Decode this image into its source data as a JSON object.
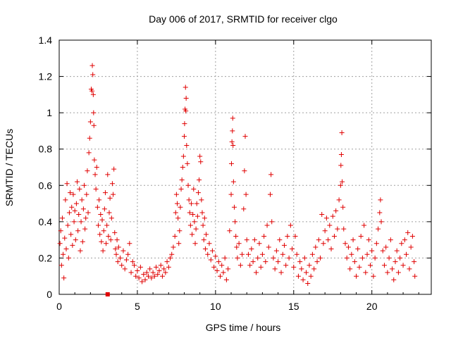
{
  "chart_data": {
    "type": "scatter",
    "title": "Day 006 of 2017, SRMTID for receiver clgo",
    "xlabel": "GPS time / hours",
    "ylabel": "SRMTID / TECUs",
    "xlim": [
      0,
      23.8
    ],
    "ylim": [
      0,
      1.4
    ],
    "x_ticks": [
      0,
      5,
      10,
      15,
      20
    ],
    "x_tick_labels": [
      "0",
      "5",
      "10",
      "15",
      "20"
    ],
    "y_ticks": [
      0,
      0.2,
      0.4,
      0.6,
      0.8,
      1.0,
      1.2,
      1.4
    ],
    "y_tick_labels": [
      "0",
      "0.2",
      "0.4",
      "0.6",
      "0.8",
      "1",
      "1.2",
      "1.4"
    ],
    "grid": true,
    "marker": "+",
    "color": "#e00000",
    "series": [
      {
        "name": "SRMTID",
        "points": [
          [
            0.05,
            0.28
          ],
          [
            0.1,
            0.35
          ],
          [
            0.15,
            0.16
          ],
          [
            0.2,
            0.42
          ],
          [
            0.25,
            0.22
          ],
          [
            0.3,
            0.09
          ],
          [
            0.35,
            0.31
          ],
          [
            0.4,
            0.52
          ],
          [
            0.45,
            0.25
          ],
          [
            0.5,
            0.61
          ],
          [
            0.55,
            0.38
          ],
          [
            0.6,
            0.2
          ],
          [
            0.65,
            0.45
          ],
          [
            0.7,
            0.56
          ],
          [
            0.75,
            0.33
          ],
          [
            0.8,
            0.48
          ],
          [
            0.85,
            0.27
          ],
          [
            0.9,
            0.55
          ],
          [
            0.95,
            0.4
          ],
          [
            1.0,
            0.46
          ],
          [
            1.05,
            0.3
          ],
          [
            1.1,
            0.5
          ],
          [
            1.15,
            0.62
          ],
          [
            1.2,
            0.35
          ],
          [
            1.25,
            0.44
          ],
          [
            1.3,
            0.58
          ],
          [
            1.35,
            0.24
          ],
          [
            1.4,
            0.4
          ],
          [
            1.45,
            0.52
          ],
          [
            1.5,
            0.29
          ],
          [
            1.55,
            0.47
          ],
          [
            1.6,
            0.6
          ],
          [
            1.65,
            0.36
          ],
          [
            1.7,
            0.42
          ],
          [
            1.75,
            0.55
          ],
          [
            1.8,
            0.68
          ],
          [
            1.85,
            0.45
          ],
          [
            1.9,
            0.78
          ],
          [
            1.95,
            0.86
          ],
          [
            2.0,
            0.95
          ],
          [
            2.05,
            1.13
          ],
          [
            2.1,
            1.12
          ],
          [
            2.12,
            1.26
          ],
          [
            2.15,
            1.21
          ],
          [
            2.18,
            1.1
          ],
          [
            2.2,
            1.0
          ],
          [
            2.22,
            0.93
          ],
          [
            2.25,
            0.74
          ],
          [
            2.3,
            0.66
          ],
          [
            2.35,
            0.58
          ],
          [
            2.4,
            0.7
          ],
          [
            2.45,
            0.48
          ],
          [
            2.5,
            0.38
          ],
          [
            2.55,
            0.52
          ],
          [
            2.6,
            0.33
          ],
          [
            2.65,
            0.44
          ],
          [
            2.7,
            0.29
          ],
          [
            2.75,
            0.41
          ],
          [
            2.8,
            0.24
          ],
          [
            2.85,
            0.35
          ],
          [
            2.9,
            0.47
          ],
          [
            2.95,
            0.56
          ],
          [
            3.0,
            0.28
          ],
          [
            3.05,
            0.38
          ],
          [
            3.1,
            0.66
          ],
          [
            3.15,
            0.32
          ],
          [
            3.2,
            0.45
          ],
          [
            3.25,
            0.53
          ],
          [
            3.3,
            0.3
          ],
          [
            3.35,
            0.42
          ],
          [
            3.4,
            0.61
          ],
          [
            3.45,
            0.55
          ],
          [
            3.5,
            0.69
          ],
          [
            3.55,
            0.34
          ],
          [
            3.6,
            0.25
          ],
          [
            3.65,
            0.22
          ],
          [
            3.7,
            0.3
          ],
          [
            3.75,
            0.18
          ],
          [
            3.8,
            0.26
          ],
          [
            3.9,
            0.2
          ],
          [
            4.0,
            0.16
          ],
          [
            4.1,
            0.24
          ],
          [
            4.2,
            0.14
          ],
          [
            4.3,
            0.19
          ],
          [
            4.4,
            0.22
          ],
          [
            4.5,
            0.28
          ],
          [
            4.6,
            0.12
          ],
          [
            4.7,
            0.18
          ],
          [
            4.8,
            0.16
          ],
          [
            4.9,
            0.1
          ],
          [
            5.0,
            0.13
          ],
          [
            5.1,
            0.09
          ],
          [
            5.2,
            0.15
          ],
          [
            5.3,
            0.07
          ],
          [
            5.4,
            0.11
          ],
          [
            5.5,
            0.08
          ],
          [
            5.6,
            0.12
          ],
          [
            5.7,
            0.1
          ],
          [
            5.8,
            0.14
          ],
          [
            5.9,
            0.09
          ],
          [
            6.0,
            0.12
          ],
          [
            6.1,
            0.1
          ],
          [
            6.2,
            0.15
          ],
          [
            6.3,
            0.11
          ],
          [
            6.4,
            0.13
          ],
          [
            6.5,
            0.16
          ],
          [
            6.6,
            0.1
          ],
          [
            6.7,
            0.14
          ],
          [
            6.8,
            0.12
          ],
          [
            6.9,
            0.18
          ],
          [
            7.0,
            0.15
          ],
          [
            7.1,
            0.2
          ],
          [
            7.2,
            0.22
          ],
          [
            7.3,
            0.26
          ],
          [
            7.4,
            0.32
          ],
          [
            7.45,
            0.45
          ],
          [
            7.5,
            0.55
          ],
          [
            7.55,
            0.5
          ],
          [
            7.6,
            0.42
          ],
          [
            7.65,
            0.28
          ],
          [
            7.7,
            0.35
          ],
          [
            7.75,
            0.48
          ],
          [
            7.8,
            0.58
          ],
          [
            7.85,
            0.63
          ],
          [
            7.9,
            0.7
          ],
          [
            7.95,
            0.76
          ],
          [
            8.0,
            0.87
          ],
          [
            8.02,
            0.94
          ],
          [
            8.05,
            1.02
          ],
          [
            8.08,
            1.14
          ],
          [
            8.1,
            1.01
          ],
          [
            8.12,
            1.08
          ],
          [
            8.15,
            0.82
          ],
          [
            8.2,
            0.72
          ],
          [
            8.25,
            0.6
          ],
          [
            8.3,
            0.52
          ],
          [
            8.35,
            0.45
          ],
          [
            8.4,
            0.38
          ],
          [
            8.45,
            0.5
          ],
          [
            8.5,
            0.33
          ],
          [
            8.55,
            0.44
          ],
          [
            8.6,
            0.58
          ],
          [
            8.65,
            0.4
          ],
          [
            8.7,
            0.28
          ],
          [
            8.75,
            0.36
          ],
          [
            8.8,
            0.5
          ],
          [
            8.85,
            0.43
          ],
          [
            8.9,
            0.56
          ],
          [
            8.95,
            0.63
          ],
          [
            9.0,
            0.76
          ],
          [
            9.05,
            0.73
          ],
          [
            9.1,
            0.52
          ],
          [
            9.15,
            0.45
          ],
          [
            9.2,
            0.38
          ],
          [
            9.25,
            0.3
          ],
          [
            9.3,
            0.42
          ],
          [
            9.35,
            0.25
          ],
          [
            9.4,
            0.33
          ],
          [
            9.5,
            0.22
          ],
          [
            9.6,
            0.28
          ],
          [
            9.7,
            0.19
          ],
          [
            9.8,
            0.24
          ],
          [
            9.9,
            0.15
          ],
          [
            10.0,
            0.21
          ],
          [
            10.1,
            0.13
          ],
          [
            10.2,
            0.18
          ],
          [
            10.3,
            0.1
          ],
          [
            10.4,
            0.16
          ],
          [
            10.5,
            0.12
          ],
          [
            10.6,
            0.2
          ],
          [
            10.7,
            0.08
          ],
          [
            10.8,
            0.14
          ],
          [
            10.9,
            0.35
          ],
          [
            11.0,
            0.55
          ],
          [
            11.02,
            0.72
          ],
          [
            11.05,
            0.84
          ],
          [
            11.08,
            0.9
          ],
          [
            11.1,
            0.97
          ],
          [
            11.12,
            0.82
          ],
          [
            11.15,
            0.62
          ],
          [
            11.2,
            0.48
          ],
          [
            11.25,
            0.4
          ],
          [
            11.3,
            0.32
          ],
          [
            11.35,
            0.26
          ],
          [
            11.4,
            0.2
          ],
          [
            11.5,
            0.28
          ],
          [
            11.6,
            0.16
          ],
          [
            11.7,
            0.22
          ],
          [
            11.8,
            0.47
          ],
          [
            11.85,
            0.68
          ],
          [
            11.9,
            0.87
          ],
          [
            11.95,
            0.55
          ],
          [
            12.0,
            0.3
          ],
          [
            12.1,
            0.22
          ],
          [
            12.2,
            0.16
          ],
          [
            12.3,
            0.25
          ],
          [
            12.4,
            0.18
          ],
          [
            12.5,
            0.3
          ],
          [
            12.6,
            0.12
          ],
          [
            12.7,
            0.2
          ],
          [
            12.8,
            0.28
          ],
          [
            12.9,
            0.15
          ],
          [
            13.0,
            0.22
          ],
          [
            13.1,
            0.32
          ],
          [
            13.2,
            0.18
          ],
          [
            13.3,
            0.38
          ],
          [
            13.4,
            0.26
          ],
          [
            13.5,
            0.55
          ],
          [
            13.55,
            0.66
          ],
          [
            13.6,
            0.4
          ],
          [
            13.7,
            0.2
          ],
          [
            13.8,
            0.14
          ],
          [
            13.9,
            0.24
          ],
          [
            14.0,
            0.18
          ],
          [
            14.1,
            0.3
          ],
          [
            14.2,
            0.12
          ],
          [
            14.3,
            0.22
          ],
          [
            14.4,
            0.27
          ],
          [
            14.5,
            0.16
          ],
          [
            14.6,
            0.32
          ],
          [
            14.7,
            0.2
          ],
          [
            14.8,
            0.38
          ],
          [
            14.9,
            0.25
          ],
          [
            15.0,
            0.15
          ],
          [
            15.1,
            0.32
          ],
          [
            15.2,
            0.22
          ],
          [
            15.3,
            0.1
          ],
          [
            15.4,
            0.18
          ],
          [
            15.5,
            0.14
          ],
          [
            15.6,
            0.08
          ],
          [
            15.7,
            0.2
          ],
          [
            15.8,
            0.12
          ],
          [
            15.9,
            0.06
          ],
          [
            16.0,
            0.16
          ],
          [
            16.1,
            0.1
          ],
          [
            16.2,
            0.22
          ],
          [
            16.3,
            0.14
          ],
          [
            16.4,
            0.26
          ],
          [
            16.5,
            0.18
          ],
          [
            16.6,
            0.3
          ],
          [
            16.7,
            0.2
          ],
          [
            16.8,
            0.44
          ],
          [
            16.9,
            0.28
          ],
          [
            17.0,
            0.35
          ],
          [
            17.1,
            0.42
          ],
          [
            17.2,
            0.3
          ],
          [
            17.3,
            0.38
          ],
          [
            17.4,
            0.25
          ],
          [
            17.5,
            0.43
          ],
          [
            17.6,
            0.32
          ],
          [
            17.7,
            0.46
          ],
          [
            17.8,
            0.36
          ],
          [
            17.9,
            0.52
          ],
          [
            18.0,
            0.6
          ],
          [
            18.02,
            0.71
          ],
          [
            18.05,
            0.77
          ],
          [
            18.08,
            0.89
          ],
          [
            18.1,
            0.62
          ],
          [
            18.15,
            0.48
          ],
          [
            18.2,
            0.36
          ],
          [
            18.3,
            0.28
          ],
          [
            18.4,
            0.2
          ],
          [
            18.5,
            0.26
          ],
          [
            18.6,
            0.14
          ],
          [
            18.7,
            0.22
          ],
          [
            18.8,
            0.3
          ],
          [
            18.9,
            0.18
          ],
          [
            19.0,
            0.1
          ],
          [
            19.1,
            0.25
          ],
          [
            19.2,
            0.15
          ],
          [
            19.3,
            0.32
          ],
          [
            19.4,
            0.2
          ],
          [
            19.5,
            0.38
          ],
          [
            19.6,
            0.12
          ],
          [
            19.7,
            0.22
          ],
          [
            19.8,
            0.3
          ],
          [
            19.9,
            0.16
          ],
          [
            20.0,
            0.24
          ],
          [
            20.1,
            0.1
          ],
          [
            20.2,
            0.2
          ],
          [
            20.3,
            0.28
          ],
          [
            20.4,
            0.36
          ],
          [
            20.5,
            0.45
          ],
          [
            20.55,
            0.52
          ],
          [
            20.6,
            0.4
          ],
          [
            20.7,
            0.24
          ],
          [
            20.8,
            0.16
          ],
          [
            20.9,
            0.26
          ],
          [
            21.0,
            0.12
          ],
          [
            21.1,
            0.2
          ],
          [
            21.2,
            0.3
          ],
          [
            21.3,
            0.14
          ],
          [
            21.4,
            0.08
          ],
          [
            21.5,
            0.18
          ],
          [
            21.6,
            0.24
          ],
          [
            21.7,
            0.12
          ],
          [
            21.8,
            0.2
          ],
          [
            21.9,
            0.28
          ],
          [
            22.0,
            0.16
          ],
          [
            22.1,
            0.3
          ],
          [
            22.2,
            0.22
          ],
          [
            22.3,
            0.34
          ],
          [
            22.4,
            0.14
          ],
          [
            22.5,
            0.26
          ],
          [
            22.6,
            0.32
          ],
          [
            22.7,
            0.18
          ],
          [
            22.75,
            0.1
          ]
        ]
      },
      {
        "name": "marker-square",
        "points": [
          [
            3.1,
            0.0
          ]
        ]
      }
    ]
  }
}
